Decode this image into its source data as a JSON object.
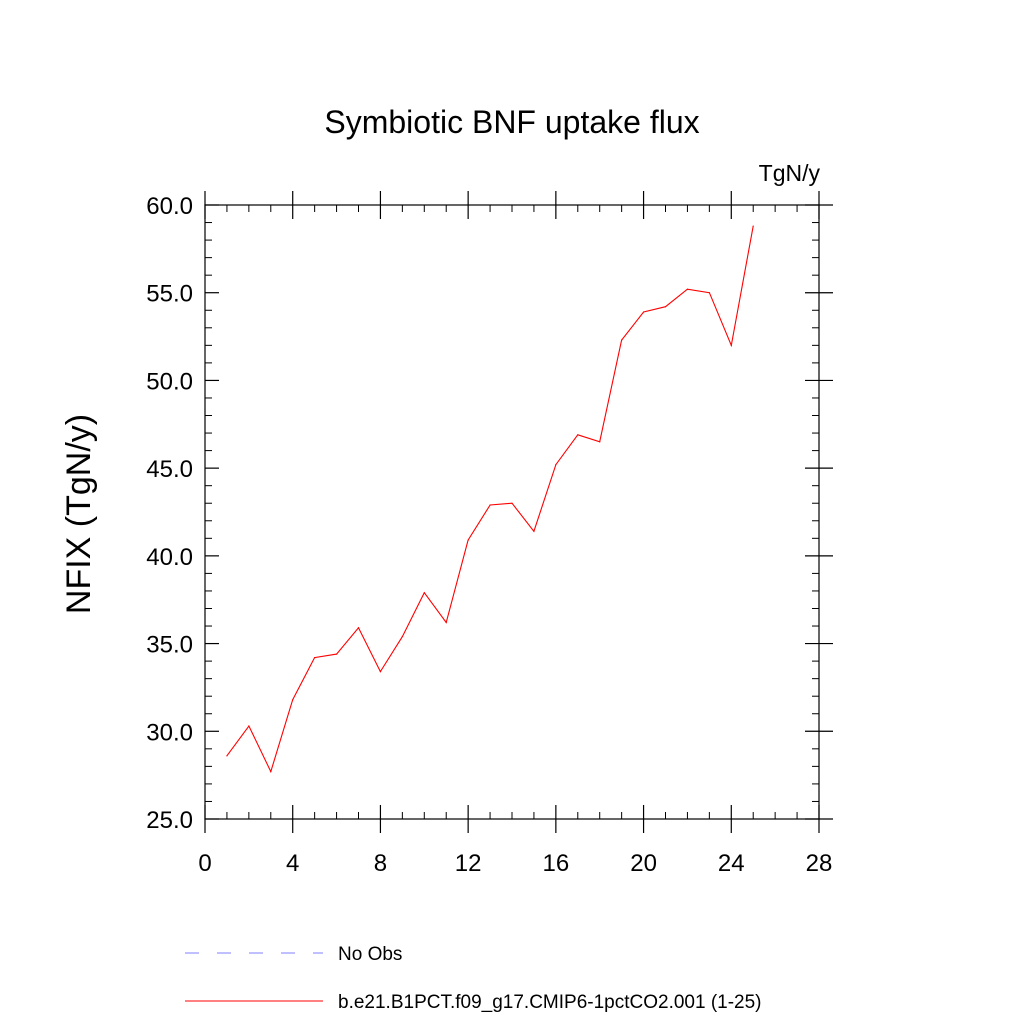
{
  "chart_data": {
    "type": "line",
    "title": "Symbiotic BNF uptake flux",
    "units_label": "TgN/y",
    "xlabel": "",
    "ylabel": "NFIX  (TgN/y)",
    "xlim": [
      0,
      28
    ],
    "ylim": [
      25,
      60
    ],
    "x_ticks": [
      "0",
      "4",
      "8",
      "12",
      "16",
      "20",
      "24",
      "28"
    ],
    "y_ticks": [
      "25.0",
      "30.0",
      "35.0",
      "40.0",
      "45.0",
      "50.0",
      "55.0",
      "60.0"
    ],
    "grid": false,
    "legend_position": "bottom",
    "series": [
      {
        "name": "No Obs",
        "color": "#8080ff",
        "dash": "dashed",
        "x": [],
        "values": []
      },
      {
        "name": "b.e21.B1PCT.f09_g17.CMIP6-1pctCO2.001 (1-25)",
        "color": "#ff0000",
        "dash": "solid",
        "x": [
          1,
          2,
          3,
          4,
          5,
          6,
          7,
          8,
          9,
          10,
          11,
          12,
          13,
          14,
          15,
          16,
          17,
          18,
          19,
          20,
          21,
          22,
          23,
          24,
          25
        ],
        "values": [
          28.6,
          30.3,
          27.7,
          31.8,
          34.2,
          34.4,
          35.9,
          33.4,
          35.4,
          37.9,
          36.2,
          40.9,
          42.9,
          43.0,
          41.4,
          45.2,
          46.9,
          46.5,
          52.3,
          53.9,
          54.2,
          55.2,
          55.0,
          52.0,
          58.8
        ]
      }
    ]
  }
}
